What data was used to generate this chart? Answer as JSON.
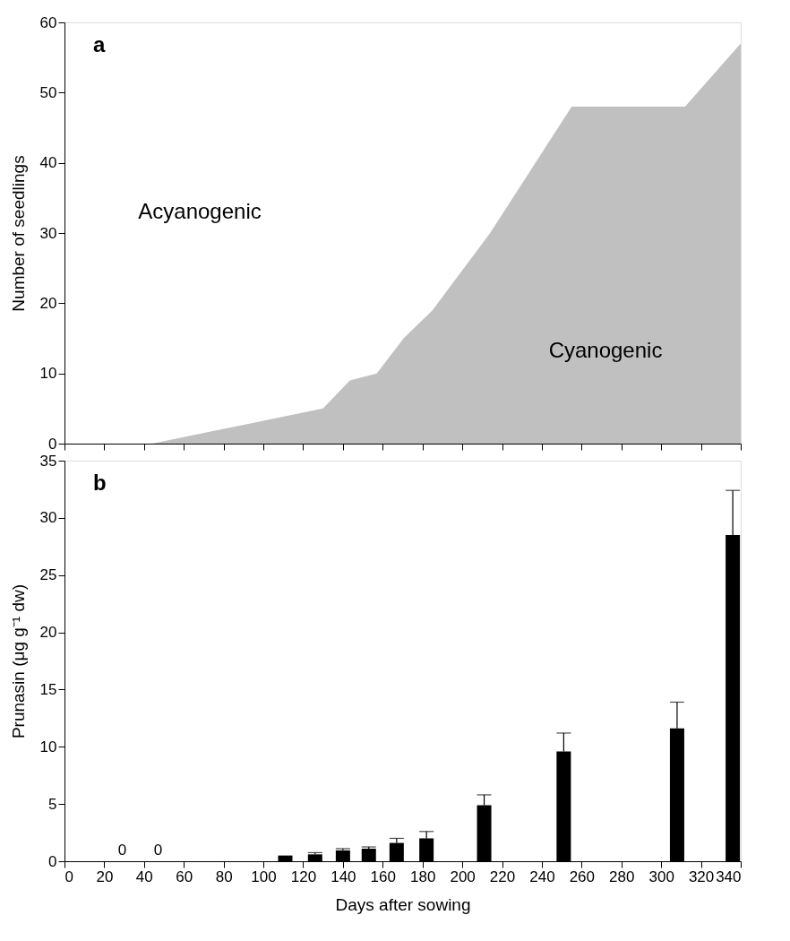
{
  "chart_data": [
    {
      "type": "area",
      "title": "a",
      "ylabel": "Number of seedlings",
      "x": [
        44,
        130,
        143.5,
        157,
        170.5,
        185,
        214,
        255,
        312,
        340
      ],
      "series": [
        {
          "color": "#c0c0c0",
          "values": [
            0,
            5,
            9,
            10,
            15,
            19,
            30,
            48,
            48,
            57
          ]
        }
      ],
      "annotations": [
        "Acyanogenic",
        "Cyanogenic"
      ],
      "xlim": [
        0,
        340
      ],
      "xticks": [
        0,
        20,
        40,
        60,
        80,
        100,
        120,
        140,
        160,
        180,
        200,
        220,
        240,
        260,
        280,
        300,
        320,
        340
      ],
      "ylim": [
        0,
        60
      ],
      "yticks": [
        0,
        10,
        20,
        30,
        40,
        50,
        60
      ],
      "tick_labels": "y",
      "grid": false
    },
    {
      "type": "bar",
      "title": "b",
      "xlabel": "Days after sowing",
      "ylabel": "Prunasin (μg g⁻¹ dw)",
      "x": [
        29,
        47,
        111,
        126,
        140,
        153,
        167,
        182,
        211,
        251,
        308,
        336
      ],
      "series": [
        {
          "color": "#000000",
          "values": [
            0,
            0,
            0.5,
            0.6,
            0.95,
            1.1,
            1.6,
            2.0,
            4.9,
            9.6,
            11.6,
            28.5
          ],
          "errors": [
            null,
            null,
            null,
            [
              0.6,
              0.75
            ],
            [
              0.95,
              1.1
            ],
            [
              1.1,
              1.25
            ],
            [
              1.6,
              2.0
            ],
            [
              2.0,
              2.6
            ],
            [
              4.9,
              5.8
            ],
            [
              9.6,
              11.2
            ],
            [
              11.6,
              13.9
            ],
            [
              28.5,
              32.4
            ]
          ],
          "value_labels": [
            "0",
            "0",
            null,
            null,
            null,
            null,
            null,
            null,
            null,
            null,
            null,
            null
          ]
        }
      ],
      "xlim": [
        0,
        340
      ],
      "xticks": [
        0,
        20,
        40,
        60,
        80,
        100,
        120,
        140,
        160,
        180,
        200,
        220,
        240,
        260,
        280,
        300,
        320,
        340
      ],
      "ylim": [
        0,
        35
      ],
      "yticks": [
        0,
        5,
        10,
        15,
        20,
        25,
        30,
        35
      ],
      "grid": false
    }
  ]
}
